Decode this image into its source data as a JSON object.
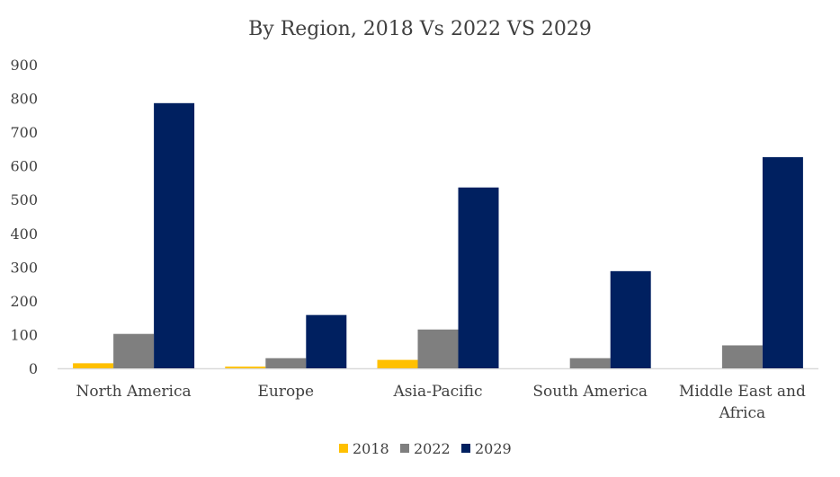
{
  "chart_data": {
    "type": "bar",
    "title": "By Region, 2018 Vs 2022 VS 2029",
    "xlabel": "",
    "ylabel": "",
    "ylim": [
      0,
      900
    ],
    "yticks": [
      0,
      100,
      200,
      300,
      400,
      500,
      600,
      700,
      800,
      900
    ],
    "categories": [
      [
        "North America"
      ],
      [
        "Europe"
      ],
      [
        "Asia-Pacific"
      ],
      [
        "South America"
      ],
      [
        "Middle East and",
        "Africa"
      ]
    ],
    "series": [
      {
        "name": "2018",
        "color": "#FFC000",
        "values": [
          15,
          5,
          25,
          0,
          0
        ]
      },
      {
        "name": "2022",
        "color": "#7F7F7F",
        "values": [
          102,
          30,
          115,
          30,
          68
        ]
      },
      {
        "name": "2029",
        "color": "#002060",
        "values": [
          786,
          158,
          536,
          288,
          626
        ]
      }
    ],
    "legend_position": "bottom",
    "grid": false
  }
}
